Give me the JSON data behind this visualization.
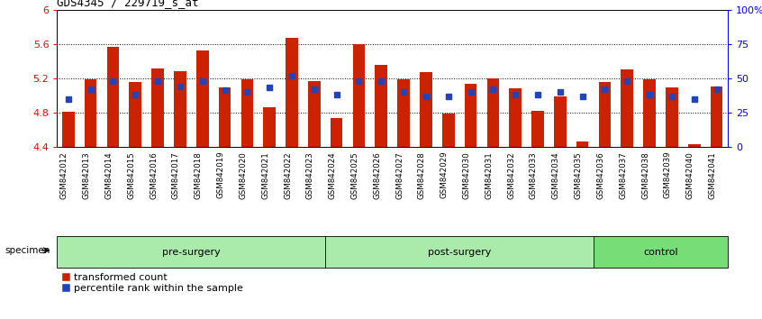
{
  "title": "GDS4345 / 229719_s_at",
  "samples": [
    "GSM842012",
    "GSM842013",
    "GSM842014",
    "GSM842015",
    "GSM842016",
    "GSM842017",
    "GSM842018",
    "GSM842019",
    "GSM842020",
    "GSM842021",
    "GSM842022",
    "GSM842023",
    "GSM842024",
    "GSM842025",
    "GSM842026",
    "GSM842027",
    "GSM842028",
    "GSM842029",
    "GSM842030",
    "GSM842031",
    "GSM842032",
    "GSM842033",
    "GSM842034",
    "GSM842035",
    "GSM842036",
    "GSM842037",
    "GSM842038",
    "GSM842039",
    "GSM842040",
    "GSM842041"
  ],
  "red_values": [
    4.81,
    5.19,
    5.56,
    5.15,
    5.31,
    5.28,
    5.52,
    5.09,
    5.19,
    4.86,
    5.67,
    5.17,
    4.73,
    5.6,
    5.35,
    5.19,
    5.27,
    4.79,
    5.13,
    5.2,
    5.08,
    4.82,
    4.99,
    4.46,
    5.15,
    5.3,
    5.19,
    5.09,
    4.43,
    5.1
  ],
  "blue_pct": [
    35,
    42,
    48,
    38,
    48,
    44,
    48,
    41,
    40,
    43,
    52,
    42,
    38,
    48,
    48,
    40,
    37,
    37,
    40,
    42,
    38,
    38,
    40,
    37,
    42,
    48,
    38,
    37,
    35,
    42
  ],
  "group_list": [
    [
      "pre-surgery",
      0,
      12,
      "#aaeaaa"
    ],
    [
      "post-surgery",
      12,
      24,
      "#aaeaaa"
    ],
    [
      "control",
      24,
      30,
      "#77dd77"
    ]
  ],
  "ylim_left": [
    4.4,
    6.0
  ],
  "ylim_right": [
    0,
    100
  ],
  "yticks_left": [
    4.4,
    4.8,
    5.2,
    5.6,
    6.0
  ],
  "ytick_labels_left": [
    "4.4",
    "4.8",
    "5.2",
    "5.6",
    "6"
  ],
  "yticks_right": [
    0,
    25,
    50,
    75,
    100
  ],
  "ytick_labels_right": [
    "0",
    "25",
    "50",
    "75",
    "100%"
  ],
  "hlines": [
    4.8,
    5.2,
    5.6
  ],
  "bar_color": "#CC2200",
  "blue_color": "#2244BB",
  "bar_width": 0.55,
  "base": 4.4,
  "xtick_bg": "#c8c8c8",
  "group_band_color_light": "#aaeaaa",
  "group_band_color_dark": "#66cc66"
}
